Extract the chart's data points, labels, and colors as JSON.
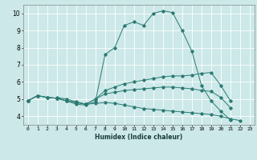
{
  "title": "",
  "xlabel": "Humidex (Indice chaleur)",
  "bg_color": "#cce8e8",
  "grid_color": "#ffffff",
  "line_color": "#2a7a72",
  "xlim": [
    -0.5,
    23.5
  ],
  "ylim": [
    3.5,
    10.5
  ],
  "xticks": [
    0,
    1,
    2,
    3,
    4,
    5,
    6,
    7,
    8,
    9,
    10,
    11,
    12,
    13,
    14,
    15,
    16,
    17,
    18,
    19,
    20,
    21,
    22,
    23
  ],
  "yticks": [
    4,
    5,
    6,
    7,
    8,
    9,
    10
  ],
  "line1_y": [
    4.9,
    5.2,
    5.1,
    5.05,
    4.9,
    4.7,
    4.65,
    4.85,
    7.6,
    8.0,
    9.3,
    9.5,
    9.3,
    10.0,
    10.15,
    10.05,
    9.0,
    7.8,
    5.8,
    4.9,
    4.3,
    3.8,
    null,
    null
  ],
  "line2_y": [
    4.9,
    5.2,
    5.1,
    5.05,
    4.9,
    4.8,
    4.7,
    5.0,
    5.5,
    5.7,
    5.9,
    6.0,
    6.1,
    6.2,
    6.3,
    6.35,
    6.35,
    6.4,
    6.5,
    6.55,
    5.8,
    4.9,
    null,
    null
  ],
  "line3_y": [
    4.9,
    5.2,
    5.1,
    5.05,
    4.9,
    4.8,
    4.7,
    5.0,
    5.3,
    5.4,
    5.5,
    5.55,
    5.6,
    5.65,
    5.7,
    5.7,
    5.65,
    5.6,
    5.5,
    5.45,
    5.1,
    4.5,
    null,
    null
  ],
  "line4_y": [
    4.9,
    null,
    null,
    5.1,
    5.0,
    4.85,
    4.7,
    4.75,
    4.8,
    4.75,
    4.65,
    4.55,
    4.45,
    4.4,
    4.35,
    4.3,
    4.25,
    4.2,
    4.15,
    4.1,
    4.0,
    3.85,
    3.75,
    null
  ]
}
